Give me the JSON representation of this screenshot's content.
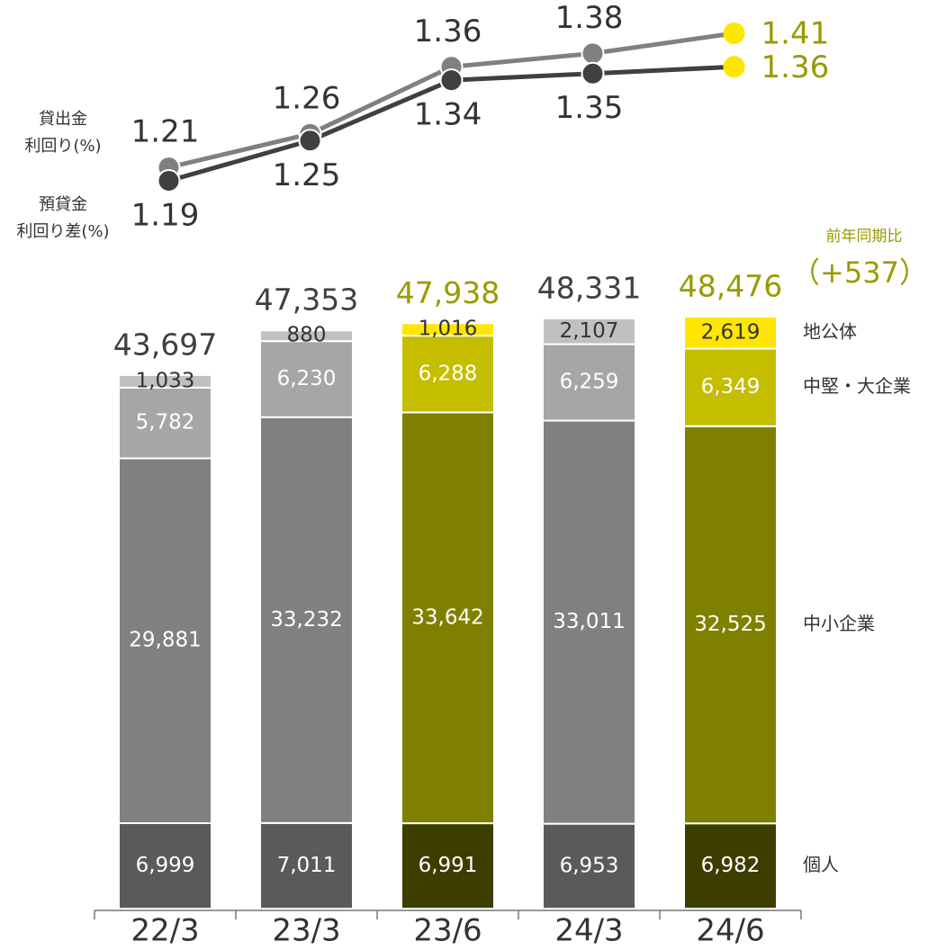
{
  "chart_data": {
    "type": "stacked-bar-line",
    "categories": [
      "22/3",
      "23/3",
      "23/6",
      "24/3",
      "24/6"
    ],
    "series": [
      {
        "name": "個人",
        "colors": [
          "#5a5a5a",
          "#5a5a5a",
          "#3d3d00",
          "#5a5a5a",
          "#3d3d00"
        ],
        "label_color": "#ffffff",
        "values": [
          6999,
          7011,
          6991,
          6953,
          6982
        ],
        "value_labels": [
          "6,999",
          "7,011",
          "6,991",
          "6,953",
          "6,982"
        ]
      },
      {
        "name": "中小企業",
        "colors": [
          "#808080",
          "#808080",
          "#808000",
          "#808080",
          "#808000"
        ],
        "label_color": "#ffffff",
        "values": [
          29881,
          33232,
          33642,
          33011,
          32525
        ],
        "value_labels": [
          "29,881",
          "33,232",
          "33,642",
          "33,011",
          "32,525"
        ]
      },
      {
        "name": "中堅・大企業",
        "colors": [
          "#a6a6a6",
          "#a6a6a6",
          "#c4bd00",
          "#a6a6a6",
          "#c4bd00"
        ],
        "label_color": "#ffffff",
        "values": [
          5782,
          6230,
          6288,
          6259,
          6349
        ],
        "value_labels": [
          "5,782",
          "6,230",
          "6,288",
          "6,259",
          "6,349"
        ]
      },
      {
        "name": "地公体",
        "colors": [
          "#c0c0c0",
          "#c0c0c0",
          "#ffe600",
          "#c0c0c0",
          "#ffe600"
        ],
        "label_color": "#333333",
        "values": [
          1033,
          880,
          1016,
          2107,
          2619
        ],
        "value_labels": [
          "1,033",
          "880",
          "1,016",
          "2,107",
          "2,619"
        ]
      }
    ],
    "totals": {
      "values": [
        43697,
        47353,
        47938,
        48331,
        48476
      ],
      "value_labels": [
        "43,697",
        "47,353",
        "47,938",
        "48,331",
        "48,476"
      ],
      "colors": [
        "#404040",
        "#404040",
        "#9a9a00",
        "#404040",
        "#9a9a00"
      ]
    },
    "lines": [
      {
        "name": "貸出金\n利回り(%)",
        "color": "#808080",
        "label_position": "above",
        "values": [
          1.21,
          1.26,
          1.36,
          1.38,
          1.41
        ]
      },
      {
        "name": "預貸金\n利回り差(%)",
        "color": "#404040",
        "label_position": "below",
        "values": [
          1.19,
          1.25,
          1.34,
          1.35,
          1.36
        ]
      }
    ],
    "last_point_color": "#ffe600",
    "last_label_color": "#9a9a00",
    "annotations": [
      {
        "text": "前年同期比",
        "color": "#9a9a00"
      },
      {
        "text": "（+537）",
        "color": "#9a9a00"
      }
    ]
  }
}
